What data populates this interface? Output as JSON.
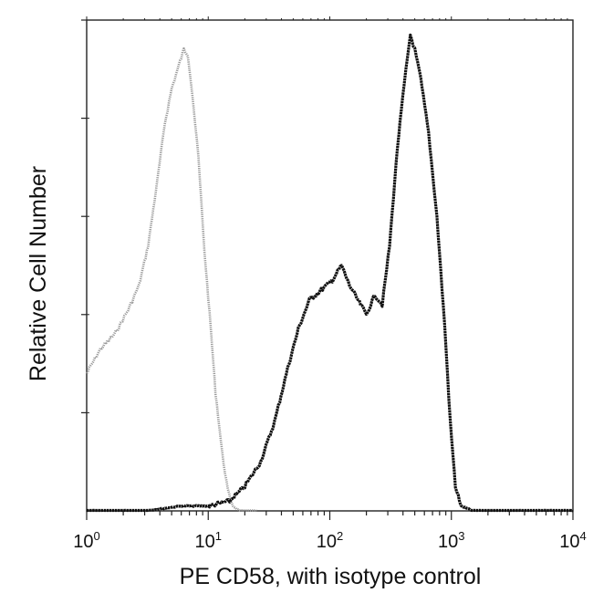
{
  "chart_data": {
    "type": "area",
    "title": "",
    "xlabel": "PE CD58, with isotype control",
    "ylabel": "Relative Cell Number",
    "x_scale": "log",
    "xlim": [
      1,
      10000
    ],
    "ylim": [
      0,
      100
    ],
    "x_ticks": [
      {
        "base": "10",
        "exp": "0",
        "value": 1
      },
      {
        "base": "10",
        "exp": "1",
        "value": 10
      },
      {
        "base": "10",
        "exp": "2",
        "value": 100
      },
      {
        "base": "10",
        "exp": "3",
        "value": 1000
      },
      {
        "base": "10",
        "exp": "4",
        "value": 10000
      }
    ],
    "y_tick_labels": [],
    "grid": false,
    "legend": "none",
    "series": [
      {
        "style": "light gray, unfilled",
        "color": "#9a9a9a",
        "points": [
          [
            1.0,
            28
          ],
          [
            1.3,
            33
          ],
          [
            1.7,
            36
          ],
          [
            2.2,
            41
          ],
          [
            2.7,
            46
          ],
          [
            3.2,
            54
          ],
          [
            3.8,
            67
          ],
          [
            4.4,
            79
          ],
          [
            5.0,
            86
          ],
          [
            5.6,
            90
          ],
          [
            6.3,
            94
          ],
          [
            6.8,
            93
          ],
          [
            7.4,
            85
          ],
          [
            8.3,
            72
          ],
          [
            9.3,
            53
          ],
          [
            10.5,
            37
          ],
          [
            11.5,
            24
          ],
          [
            13.0,
            12
          ],
          [
            14.5,
            4
          ],
          [
            16.0,
            1
          ],
          [
            18.0,
            0
          ],
          [
            25.0,
            0
          ]
        ]
      },
      {
        "style": "black, unfilled",
        "color": "#111111",
        "points": [
          [
            1.0,
            0
          ],
          [
            3.0,
            0
          ],
          [
            6.0,
            1
          ],
          [
            10.0,
            1
          ],
          [
            15.0,
            2
          ],
          [
            20.0,
            5
          ],
          [
            27.0,
            10
          ],
          [
            35.0,
            18
          ],
          [
            45.0,
            29
          ],
          [
            55.0,
            37
          ],
          [
            68.0,
            43
          ],
          [
            85.0,
            45
          ],
          [
            105.0,
            47
          ],
          [
            125.0,
            50
          ],
          [
            145.0,
            46
          ],
          [
            170.0,
            43
          ],
          [
            200.0,
            40
          ],
          [
            235.0,
            44
          ],
          [
            270.0,
            42
          ],
          [
            310.0,
            54
          ],
          [
            360.0,
            74
          ],
          [
            410.0,
            87
          ],
          [
            460.0,
            97
          ],
          [
            500.0,
            94
          ],
          [
            560.0,
            88
          ],
          [
            650.0,
            77
          ],
          [
            760.0,
            60
          ],
          [
            880.0,
            38
          ],
          [
            980.0,
            18
          ],
          [
            1080.0,
            5
          ],
          [
            1200.0,
            1
          ],
          [
            1500.0,
            0
          ],
          [
            3000.0,
            0
          ],
          [
            10000.0,
            0
          ]
        ]
      }
    ]
  }
}
